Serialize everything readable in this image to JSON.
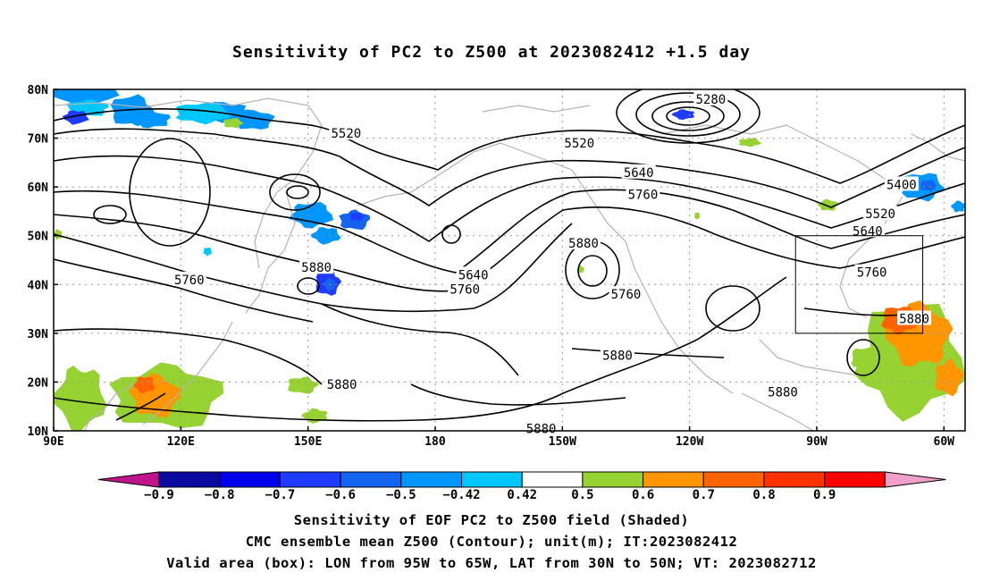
{
  "title": "Sensitivity of PC2 to Z500 at 2023082412 +1.5 day",
  "map": {
    "lon_range": [
      90,
      305
    ],
    "lat_range": [
      10,
      80
    ],
    "lat_ticks": [
      {
        "v": 80,
        "label": "80N"
      },
      {
        "v": 70,
        "label": "70N"
      },
      {
        "v": 60,
        "label": "60N"
      },
      {
        "v": 50,
        "label": "50N"
      },
      {
        "v": 40,
        "label": "40N"
      },
      {
        "v": 30,
        "label": "30N"
      },
      {
        "v": 20,
        "label": "20N"
      },
      {
        "v": 10,
        "label": "10N"
      }
    ],
    "lon_ticks": [
      {
        "v": 90,
        "label": "90E"
      },
      {
        "v": 120,
        "label": "120E"
      },
      {
        "v": 150,
        "label": "150E"
      },
      {
        "v": 180,
        "label": "180"
      },
      {
        "v": 210,
        "label": "150W"
      },
      {
        "v": 240,
        "label": "120W"
      },
      {
        "v": 270,
        "label": "90W"
      },
      {
        "v": 300,
        "label": "60W"
      }
    ],
    "valid_box": {
      "lon": [
        265,
        295
      ],
      "lat": [
        30,
        50
      ]
    },
    "contour_labels": [
      {
        "text": "5280",
        "lon": 245,
        "lat": 78
      },
      {
        "text": "5520",
        "lon": 159,
        "lat": 71
      },
      {
        "text": "5520",
        "lon": 214,
        "lat": 69
      },
      {
        "text": "5640",
        "lon": 228,
        "lat": 63
      },
      {
        "text": "5760",
        "lon": 229,
        "lat": 58.5
      },
      {
        "text": "5400",
        "lon": 290,
        "lat": 60.5
      },
      {
        "text": "5520",
        "lon": 285,
        "lat": 54.5
      },
      {
        "text": "5640",
        "lon": 282,
        "lat": 51
      },
      {
        "text": "5880",
        "lon": 215,
        "lat": 48.5
      },
      {
        "text": "5880",
        "lon": 152,
        "lat": 43.5
      },
      {
        "text": "5760",
        "lon": 122,
        "lat": 41
      },
      {
        "text": "5640",
        "lon": 189,
        "lat": 42
      },
      {
        "text": "5760",
        "lon": 187,
        "lat": 39
      },
      {
        "text": "5760",
        "lon": 225,
        "lat": 38
      },
      {
        "text": "5760",
        "lon": 283,
        "lat": 42.5
      },
      {
        "text": "5880",
        "lon": 293,
        "lat": 33
      },
      {
        "text": "5880",
        "lon": 223,
        "lat": 25.5
      },
      {
        "text": "5880",
        "lon": 158,
        "lat": 19.5
      },
      {
        "text": "5880",
        "lon": 262,
        "lat": 18
      },
      {
        "text": "5880",
        "lon": 205,
        "lat": 10.5
      }
    ]
  },
  "colorbar": {
    "labels": [
      "-0.9",
      "-0.8",
      "-0.7",
      "-0.6",
      "-0.5",
      "-0.42",
      "0.42",
      "0.5",
      "0.6",
      "0.7",
      "0.8",
      "0.9"
    ],
    "colors": [
      "#c0148c",
      "#0a0aa0",
      "#0000ee",
      "#1e3cff",
      "#1464f0",
      "#0096ff",
      "#00c8ff",
      "#ffffff",
      "#96d232",
      "#ff9600",
      "#ff6400",
      "#ff3200",
      "#ff0000",
      "#f0a0c8"
    ]
  },
  "captions": [
    "Sensitivity of EOF PC2 to Z500 field (Shaded)",
    "CMC ensemble mean Z500 (Contour); unit(m); IT:2023082412",
    "Valid area (box): LON from 95W to 65W, LAT from 30N to 50N; VT: 2023082712"
  ]
}
